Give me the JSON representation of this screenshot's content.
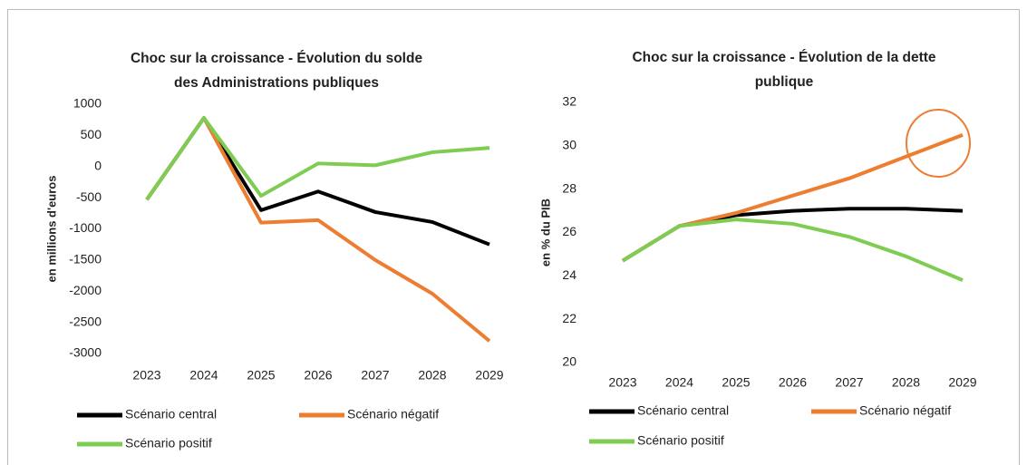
{
  "chart_data": [
    {
      "type": "line",
      "title": [
        "Choc sur la croissance - Évolution du solde",
        "des Administrations publiques"
      ],
      "y_label": "en millions d'euros",
      "categories": [
        "2023",
        "2024",
        "2025",
        "2026",
        "2027",
        "2028",
        "2029"
      ],
      "series": [
        {
          "name": "Scénario central",
          "color": "#000000",
          "values": [
            -530,
            780,
            -700,
            -400,
            -730,
            -890,
            -1250
          ]
        },
        {
          "name": "Scénario négatif",
          "color": "#ed7d31",
          "values": [
            -530,
            780,
            -900,
            -860,
            -1500,
            -2040,
            -2800
          ]
        },
        {
          "name": "Scénario positif",
          "color": "#7fcc52",
          "values": [
            -530,
            780,
            -470,
            50,
            20,
            230,
            300
          ]
        }
      ],
      "ylim": [
        -3000,
        1000
      ],
      "yticks": [
        -3000,
        -2500,
        -2000,
        -1500,
        -1000,
        -500,
        0,
        500,
        1000
      ],
      "grid": false
    },
    {
      "type": "line",
      "title": [
        "Choc sur la croissance - Évolution de la dette",
        "publique"
      ],
      "y_label": "en % du PIB",
      "categories": [
        "2023",
        "2024",
        "2025",
        "2026",
        "2027",
        "2028",
        "2029"
      ],
      "series": [
        {
          "name": "Scénario central",
          "color": "#000000",
          "values": [
            24.7,
            26.3,
            26.8,
            27.0,
            27.1,
            27.1,
            27.0
          ]
        },
        {
          "name": "Scénario négatif",
          "color": "#ed7d31",
          "values": [
            24.7,
            26.3,
            26.9,
            27.7,
            28.5,
            29.5,
            30.5
          ]
        },
        {
          "name": "Scénario positif",
          "color": "#7fcc52",
          "values": [
            24.7,
            26.3,
            26.6,
            26.4,
            25.8,
            24.9,
            23.8
          ]
        }
      ],
      "ylim": [
        20,
        32
      ],
      "yticks": [
        20,
        22,
        24,
        26,
        28,
        30,
        32
      ],
      "grid": false
    }
  ]
}
